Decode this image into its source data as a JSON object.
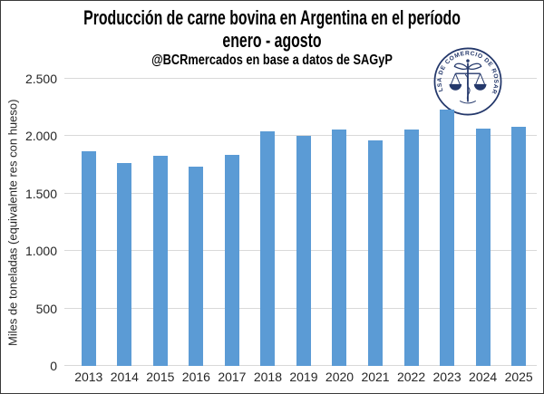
{
  "header": {
    "title_line1": "Producción de carne bovina en Argentina en el período",
    "title_line2": "enero - agosto",
    "subtitle": "@BCRmercados en base a datos de SAGyP"
  },
  "logo": {
    "text": "BOLSA DE COMERCIO DE ROSARIO",
    "color": "#24386B"
  },
  "chart_data": {
    "type": "bar",
    "title": "Producción de carne bovina en Argentina en el período enero - agosto",
    "subtitle": "@BCRmercados en base a datos de SAGyP",
    "categories": [
      "2013",
      "2014",
      "2015",
      "2016",
      "2017",
      "2018",
      "2019",
      "2020",
      "2021",
      "2022",
      "2023",
      "2024",
      "2025"
    ],
    "values": [
      1870,
      1765,
      1830,
      1735,
      1840,
      2040,
      2005,
      2060,
      1960,
      2055,
      2230,
      2065,
      2085
    ],
    "xlabel": "",
    "ylabel": "Miles de toneladas (equivalente res con hueso)",
    "ylim": [
      0,
      2500
    ],
    "ytick_labels": [
      "0",
      "500",
      "1.000",
      "1.500",
      "2.000",
      "2.500"
    ],
    "grid": true,
    "legend": false,
    "bar_color": "#5B9BD5",
    "gridline_color": "#D9D9D9",
    "axis_text_color": "#262626"
  }
}
